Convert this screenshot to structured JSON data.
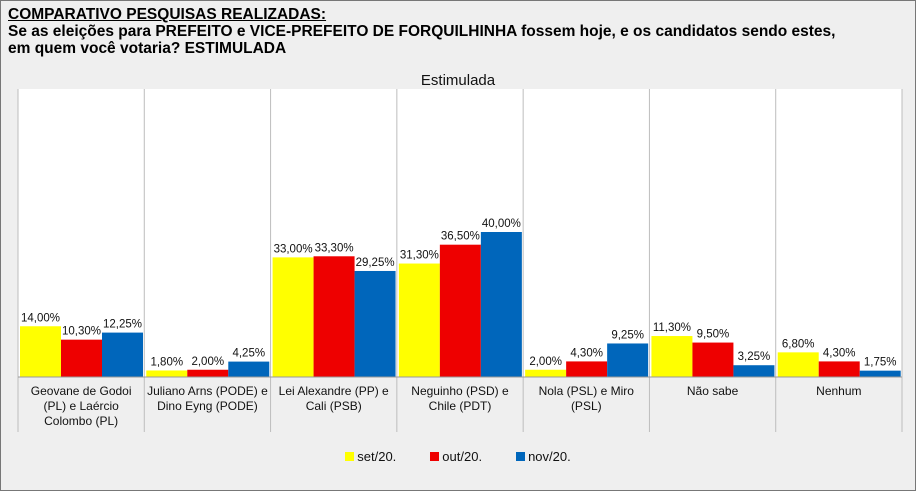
{
  "header": {
    "heading": "COMPARATIVO PESQUISAS REALIZADAS:",
    "question": "Se as eleições para PREFEITO e VICE-PREFEITO DE FORQUILHINHA fossem hoje, e os candidatos sendo estes,\nem quem você votaria? ESTIMULADA"
  },
  "chart_data": {
    "type": "bar",
    "title": "Estimulada",
    "categories": [
      "Geovane de Godoi (PL) e Laércio Colombo (PL)",
      "Juliano Arns (PODE) e Dino Eyng (PODE)",
      "Lei Alexandre (PP) e Cali (PSB)",
      "Neguinho (PSD) e Chile (PDT)",
      "Nola (PSL) e Miro (PSL)",
      "Não sabe",
      "Nenhum"
    ],
    "category_lines": [
      [
        "Geovane de Godoi",
        "(PL) e Laércio",
        "Colombo (PL)"
      ],
      [
        "Juliano Arns (PODE) e",
        "Dino Eyng (PODE)"
      ],
      [
        "Lei Alexandre (PP) e",
        "Cali (PSB)"
      ],
      [
        "Neguinho (PSD) e",
        "Chile (PDT)"
      ],
      [
        "Nola (PSL) e Miro",
        "(PSL)"
      ],
      [
        "Não sabe"
      ],
      [
        "Nenhum"
      ]
    ],
    "series": [
      {
        "name": "set/20.",
        "color": "#ffff00",
        "values": [
          14.0,
          1.8,
          33.0,
          31.3,
          2.0,
          11.3,
          6.8
        ],
        "labels": [
          "14,00%",
          "1,80%",
          "33,00%",
          "31,30%",
          "2,00%",
          "11,30%",
          "6,80%"
        ]
      },
      {
        "name": "out/20.",
        "color": "#ee0000",
        "values": [
          10.3,
          2.0,
          33.3,
          36.5,
          4.3,
          9.5,
          4.3
        ],
        "labels": [
          "10,30%",
          "2,00%",
          "33,30%",
          "36,50%",
          "4,30%",
          "9,50%",
          "4,30%"
        ]
      },
      {
        "name": "nov/20.",
        "color": "#0066bb",
        "values": [
          12.25,
          4.25,
          29.25,
          40.0,
          9.25,
          3.25,
          1.75
        ],
        "labels": [
          "12,25%",
          "4,25%",
          "29,25%",
          "40,00%",
          "9,25%",
          "3,25%",
          "1,75%"
        ]
      }
    ],
    "ylim": [
      0,
      40
    ],
    "legend_position": "bottom",
    "grid": false
  }
}
